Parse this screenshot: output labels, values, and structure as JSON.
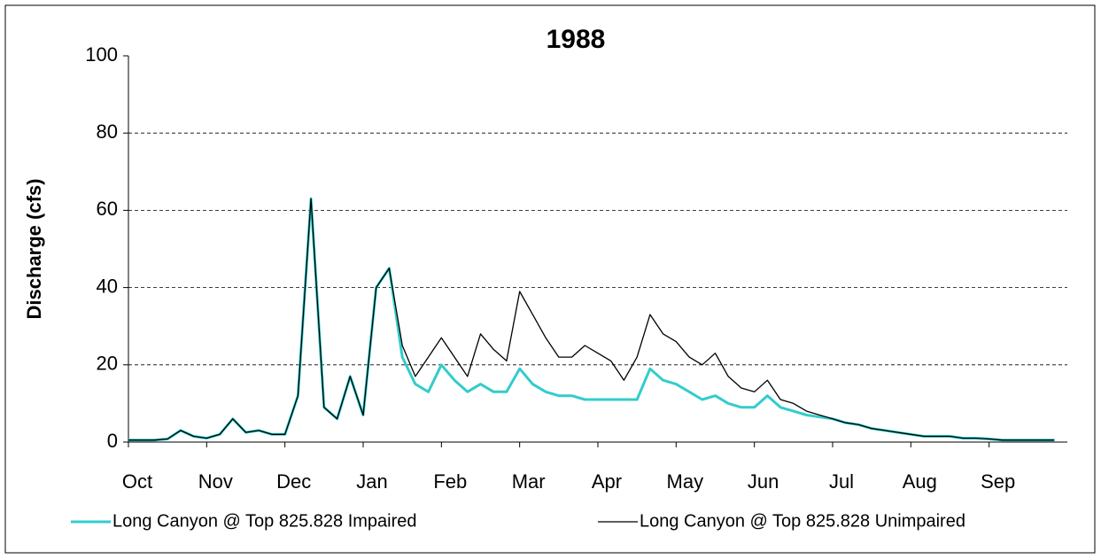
{
  "chart_data": {
    "type": "line",
    "title": "1988",
    "y_label": "Discharge (cfs)",
    "categories": [
      "Oct",
      null,
      null,
      null,
      null,
      null,
      "Nov",
      null,
      null,
      null,
      null,
      null,
      "Dec",
      null,
      null,
      null,
      null,
      null,
      "Jan",
      null,
      null,
      null,
      null,
      null,
      "Feb",
      null,
      null,
      null,
      null,
      null,
      "Mar",
      null,
      null,
      null,
      null,
      null,
      "Apr",
      null,
      null,
      null,
      null,
      null,
      "May",
      null,
      null,
      null,
      null,
      null,
      "Jun",
      null,
      null,
      null,
      null,
      null,
      "Jul",
      null,
      null,
      null,
      null,
      null,
      "Aug",
      null,
      null,
      null,
      null,
      null,
      "Sep",
      null,
      null,
      null,
      null,
      null
    ],
    "series": [
      {
        "name": "Long Canyon @ Top 825.828 Impaired",
        "color": "#33cccc",
        "values": [
          0.5,
          0.5,
          0.5,
          0.8,
          3,
          1.5,
          1,
          2,
          6,
          2.5,
          3,
          2,
          2,
          12,
          63,
          9,
          6,
          17,
          7,
          40,
          45,
          22,
          15,
          13,
          20,
          16,
          13,
          15,
          13,
          13,
          19,
          15,
          13,
          12,
          12,
          11,
          11,
          11,
          11,
          11,
          19,
          16,
          15,
          13,
          11,
          12,
          10,
          9,
          9,
          12,
          9,
          8,
          7,
          6.5,
          6,
          5,
          4.5,
          3.5,
          3,
          2.5,
          2,
          1.5,
          1.5,
          1.5,
          1,
          1,
          0.8,
          0.5,
          0.5,
          0.5,
          0.5,
          0.5
        ]
      },
      {
        "name": "Long Canyon @ Top 825.828 Unimpaired",
        "color": "#000000",
        "values": [
          0.5,
          0.5,
          0.5,
          0.8,
          3,
          1.5,
          1,
          2,
          6,
          2.5,
          3,
          2,
          2,
          12,
          63,
          9,
          6,
          17,
          7,
          40,
          45,
          25,
          17,
          22,
          27,
          22,
          17,
          28,
          24,
          21,
          39,
          33,
          27,
          22,
          22,
          25,
          23,
          21,
          16,
          22,
          33,
          28,
          26,
          22,
          20,
          23,
          17,
          14,
          13,
          16,
          11,
          10,
          8,
          7,
          6,
          5,
          4.5,
          3.5,
          3,
          2.5,
          2,
          1.5,
          1.5,
          1.5,
          1,
          1,
          0.8,
          0.5,
          0.5,
          0.5,
          0.5,
          0.5
        ]
      }
    ],
    "ylim": [
      0,
      100
    ],
    "yticks": [
      0,
      20,
      40,
      60,
      80,
      100
    ],
    "grid": true,
    "legend": "bottom"
  }
}
